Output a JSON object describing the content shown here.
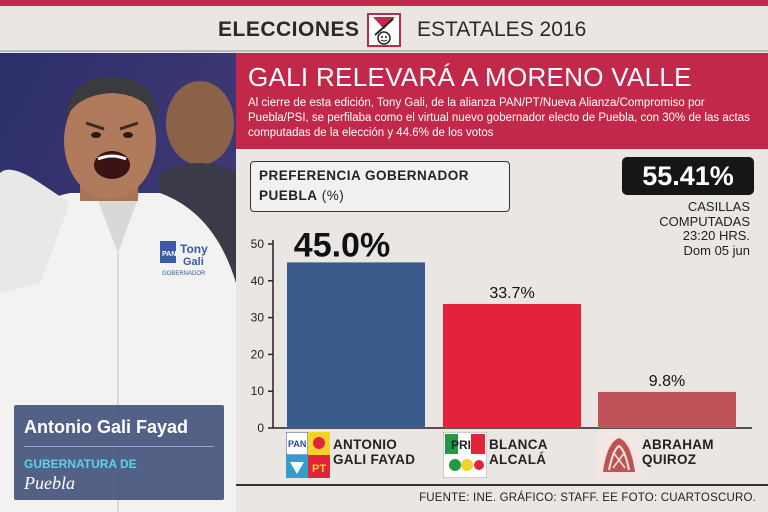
{
  "header": {
    "left": "ELECCIONES",
    "right": "ESTATALES 2016"
  },
  "banner": {
    "title": "GALI RELEVARÁ A MORENO VALLE",
    "description": "Al cierre de esta edición, Tony Gali, de la alianza PAN/PT/Nueva Alianza/Compromiso por Puebla/PSI, se perfilaba como el virtual nuevo gobernador electo de Puebla, con 30% de las actas computadas de la elección y 44.6% de los votos"
  },
  "photo": {
    "name": "Antonio Gali Fayad",
    "role": "GUBERNATURA DE",
    "state": "Puebla",
    "shirt_text_1": "Tony",
    "shirt_text_2": "Gali",
    "shirt_text_3": "GOBERNADOR",
    "shirt_logo": "PAN"
  },
  "preference_box": {
    "line1": "PREFERENCIA GOBERNADOR",
    "line2_bold": "PUEBLA",
    "line2_unit": "(%)"
  },
  "counted": {
    "percent": "55.41%",
    "line1": "CASILLAS",
    "line2": "COMPUTADAS",
    "line3": "23:20 HRS.",
    "line4": "Dom 05 jun"
  },
  "footer": "FUENTE: INE. GRÁFICO: STAFF. EE FOTO: CUARTOSCURO.",
  "chart_data": {
    "type": "bar",
    "title": "PREFERENCIA GOBERNADOR PUEBLA (%)",
    "categories": [
      "ANTONIO GALI FAYAD",
      "BLANCA ALCALÁ",
      "ABRAHAM QUIROZ"
    ],
    "values": [
      45.0,
      33.7,
      9.8
    ],
    "value_labels": [
      "45.0%",
      "33.7%",
      "9.8%"
    ],
    "name_lines": [
      [
        "ANTONIO",
        "GALI FAYAD"
      ],
      [
        "BLANCA",
        "ALCALÁ"
      ],
      [
        "ABRAHAM",
        "QUIROZ"
      ]
    ],
    "colors": [
      "#3a5a8c",
      "#e3233a",
      "#c0525a"
    ],
    "yticks": [
      0,
      10,
      20,
      30,
      40,
      50
    ],
    "ylim": [
      0,
      50
    ],
    "grid": false,
    "legend": "none"
  },
  "party_logos": [
    "PAN-PT",
    "PRI",
    "MORENA"
  ]
}
